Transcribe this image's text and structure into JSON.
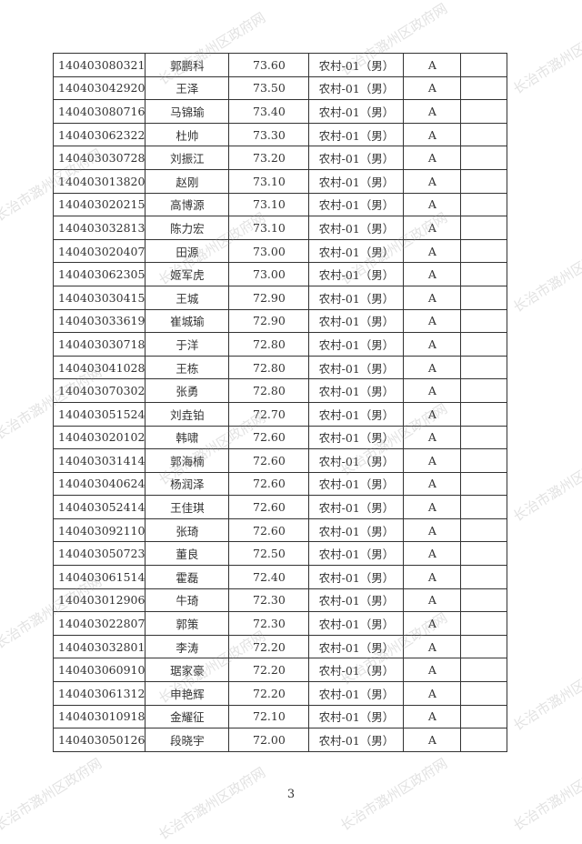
{
  "watermark": "长治市潞州区政府网",
  "page_number": "3",
  "rows": [
    [
      "140403080321",
      "郭鹏科",
      "73.60",
      "农村-01（男）",
      "A",
      ""
    ],
    [
      "140403042920",
      "王泽",
      "73.50",
      "农村-01（男）",
      "A",
      ""
    ],
    [
      "140403080716",
      "马锦瑜",
      "73.40",
      "农村-01（男）",
      "A",
      ""
    ],
    [
      "140403062322",
      "杜帅",
      "73.30",
      "农村-01（男）",
      "A",
      ""
    ],
    [
      "140403030728",
      "刘振江",
      "73.20",
      "农村-01（男）",
      "A",
      ""
    ],
    [
      "140403013820",
      "赵刚",
      "73.10",
      "农村-01（男）",
      "A",
      ""
    ],
    [
      "140403020215",
      "高博源",
      "73.10",
      "农村-01（男）",
      "A",
      ""
    ],
    [
      "140403032813",
      "陈力宏",
      "73.10",
      "农村-01（男）",
      "A",
      ""
    ],
    [
      "140403020407",
      "田源",
      "73.00",
      "农村-01（男）",
      "A",
      ""
    ],
    [
      "140403062305",
      "姬军虎",
      "73.00",
      "农村-01（男）",
      "A",
      ""
    ],
    [
      "140403030415",
      "王城",
      "72.90",
      "农村-01（男）",
      "A",
      ""
    ],
    [
      "140403033619",
      "崔城瑜",
      "72.90",
      "农村-01（男）",
      "A",
      ""
    ],
    [
      "140403030718",
      "于洋",
      "72.80",
      "农村-01（男）",
      "A",
      ""
    ],
    [
      "140403041028",
      "王栋",
      "72.80",
      "农村-01（男）",
      "A",
      ""
    ],
    [
      "140403070302",
      "张勇",
      "72.80",
      "农村-01（男）",
      "A",
      ""
    ],
    [
      "140403051524",
      "刘垚铂",
      "72.70",
      "农村-01（男）",
      "A",
      ""
    ],
    [
      "140403020102",
      "韩啸",
      "72.60",
      "农村-01（男）",
      "A",
      ""
    ],
    [
      "140403031414",
      "郭海楠",
      "72.60",
      "农村-01（男）",
      "A",
      ""
    ],
    [
      "140403040624",
      "杨润泽",
      "72.60",
      "农村-01（男）",
      "A",
      ""
    ],
    [
      "140403052414",
      "王佳琪",
      "72.60",
      "农村-01（男）",
      "A",
      ""
    ],
    [
      "140403092110",
      "张琦",
      "72.60",
      "农村-01（男）",
      "A",
      ""
    ],
    [
      "140403050723",
      "董良",
      "72.50",
      "农村-01（男）",
      "A",
      ""
    ],
    [
      "140403061514",
      "霍磊",
      "72.40",
      "农村-01（男）",
      "A",
      ""
    ],
    [
      "140403012906",
      "牛琦",
      "72.30",
      "农村-01（男）",
      "A",
      ""
    ],
    [
      "140403022807",
      "郭策",
      "72.30",
      "农村-01（男）",
      "A",
      ""
    ],
    [
      "140403032801",
      "李涛",
      "72.20",
      "农村-01（男）",
      "A",
      ""
    ],
    [
      "140403060910",
      "琚家豪",
      "72.20",
      "农村-01（男）",
      "A",
      ""
    ],
    [
      "140403061312",
      "申艳辉",
      "72.20",
      "农村-01（男）",
      "A",
      ""
    ],
    [
      "140403010918",
      "金耀征",
      "72.10",
      "农村-01（男）",
      "A",
      ""
    ],
    [
      "140403050126",
      "段晓宇",
      "72.00",
      "农村-01（男）",
      "A",
      ""
    ]
  ]
}
